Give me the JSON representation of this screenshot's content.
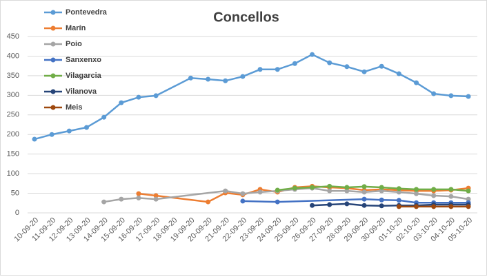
{
  "chart_data": {
    "type": "line",
    "title": "Concellos",
    "categories": [
      "10-09-20",
      "11-09-20",
      "12-09-20",
      "13-09-20",
      "14-09-20",
      "15-09-20",
      "16-09-20",
      "17-09-20",
      "18-09-20",
      "19-09-20",
      "20-09-20",
      "21-09-20",
      "22-09-20",
      "23-09-20",
      "24-09-20",
      "25-09-20",
      "26-09-20",
      "27-09-20",
      "28-09-20",
      "29-09-20",
      "30-09-20",
      "01-10-20",
      "02-10-20",
      "03-10-20",
      "04-10-20",
      "05-10-20"
    ],
    "ylim": [
      0,
      450
    ],
    "yticks": [
      0,
      50,
      100,
      150,
      200,
      250,
      300,
      350,
      400,
      450
    ],
    "grid": true,
    "legend": "top-left",
    "series": [
      {
        "name": "Pontevedra",
        "color": "#5b9bd5",
        "x": [
          "10-09-20",
          "11-09-20",
          "12-09-20",
          "13-09-20",
          "14-09-20",
          "15-09-20",
          "16-09-20",
          "17-09-20",
          "19-09-20",
          "20-09-20",
          "21-09-20",
          "22-09-20",
          "23-09-20",
          "24-09-20",
          "25-09-20",
          "26-09-20",
          "27-09-20",
          "28-09-20",
          "29-09-20",
          "30-09-20",
          "01-10-20",
          "02-10-20",
          "03-10-20",
          "04-10-20",
          "05-10-20"
        ],
        "values": [
          188,
          200,
          209,
          218,
          244,
          281,
          295,
          299,
          344,
          341,
          337,
          348,
          366,
          366,
          381,
          404,
          383,
          373,
          360,
          374,
          355,
          332,
          304,
          299,
          297
        ]
      },
      {
        "name": "Marín",
        "color": "#ed7d31",
        "x": [
          "16-09-20",
          "17-09-20",
          "20-09-20",
          "21-09-20",
          "22-09-20",
          "23-09-20",
          "24-09-20",
          "25-09-20",
          "26-09-20",
          "27-09-20",
          "28-09-20",
          "29-09-20",
          "30-09-20",
          "01-10-20",
          "02-10-20",
          "03-10-20",
          "04-10-20",
          "05-10-20"
        ],
        "values": [
          49,
          44,
          28,
          51,
          46,
          60,
          53,
          65,
          68,
          65,
          63,
          58,
          60,
          58,
          56,
          56,
          58,
          63
        ]
      },
      {
        "name": "Poio",
        "color": "#a5a5a5",
        "x": [
          "14-09-20",
          "15-09-20",
          "16-09-20",
          "17-09-20",
          "21-09-20",
          "22-09-20",
          "23-09-20",
          "24-09-20",
          "25-09-20",
          "26-09-20",
          "27-09-20",
          "28-09-20",
          "29-09-20",
          "30-09-20",
          "01-10-20",
          "02-10-20",
          "03-10-20",
          "04-10-20",
          "05-10-20"
        ],
        "values": [
          28,
          35,
          38,
          35,
          56,
          49,
          53,
          56,
          60,
          63,
          56,
          56,
          53,
          56,
          53,
          49,
          44,
          42,
          35
        ]
      },
      {
        "name": "Sanxenxo",
        "color": "#4472c4",
        "x": [
          "22-09-20",
          "24-09-20",
          "29-09-20",
          "30-09-20",
          "01-10-20",
          "02-10-20",
          "03-10-20",
          "04-10-20",
          "05-10-20"
        ],
        "values": [
          30,
          28,
          35,
          33,
          32,
          26,
          26,
          26,
          26
        ]
      },
      {
        "name": "Vilagarcia",
        "color": "#70ad47",
        "x": [
          "24-09-20",
          "25-09-20",
          "26-09-20",
          "27-09-20",
          "28-09-20",
          "29-09-20",
          "30-09-20",
          "01-10-20",
          "02-10-20",
          "03-10-20",
          "04-10-20",
          "05-10-20"
        ],
        "values": [
          58,
          63,
          65,
          68,
          65,
          67,
          65,
          62,
          60,
          60,
          60,
          56
        ]
      },
      {
        "name": "Vilanova",
        "color": "#264478",
        "x": [
          "26-09-20",
          "27-09-20",
          "28-09-20",
          "29-09-20",
          "30-09-20",
          "01-10-20",
          "02-10-20",
          "03-10-20",
          "04-10-20",
          "05-10-20"
        ],
        "values": [
          19,
          21,
          23,
          19,
          18,
          19,
          19,
          21,
          21,
          21
        ]
      },
      {
        "name": "Meis",
        "color": "#9e480e",
        "x": [
          "01-10-20",
          "02-10-20",
          "03-10-20",
          "04-10-20",
          "05-10-20"
        ],
        "values": [
          16,
          16,
          16,
          16,
          16
        ]
      }
    ]
  }
}
